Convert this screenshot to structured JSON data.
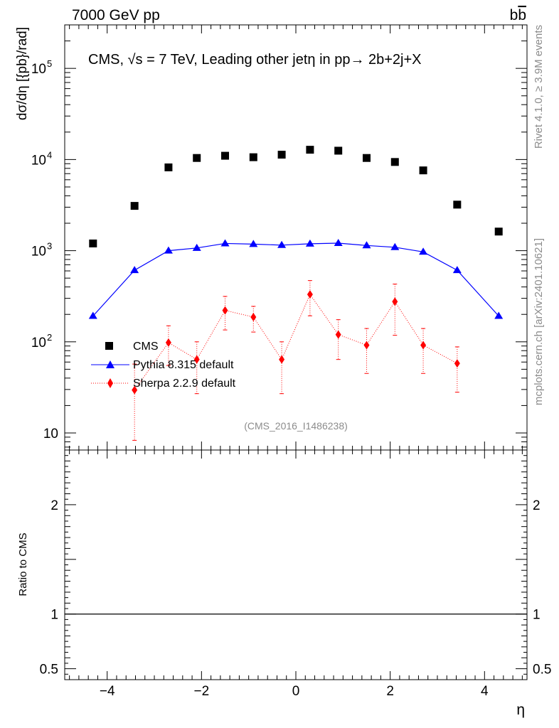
{
  "header": {
    "left": "7000 GeV pp",
    "right": "b",
    "right_bar": "b"
  },
  "side_text": {
    "rivet": "Rivet 4.1.0, ≥ 3.9M events",
    "mcplots": "mcplots.cern.ch [arXiv:2401.10621]"
  },
  "colors": {
    "cms": "#000000",
    "pythia": "#0000ff",
    "sherpa": "#ff0000",
    "ratio_line": "#000000"
  },
  "chart_data": [
    {
      "type": "scatter",
      "panel": "main",
      "title": "CMS, √s = 7 TeV, Leading other jetη in pp→  2b+2j+X",
      "ylabel": "dσ/dη [{pb}/rad]",
      "yscale": "log",
      "xlim": [
        -4.9,
        4.9
      ],
      "ylim": [
        6.5,
        300000
      ],
      "ytick_labels": [
        {
          "value": 10,
          "label": "10"
        },
        {
          "value": 100,
          "base": "10",
          "exp": "2"
        },
        {
          "value": 1000,
          "base": "10",
          "exp": "3"
        },
        {
          "value": 10000,
          "base": "10",
          "exp": "4"
        },
        {
          "value": 100000,
          "base": "10",
          "exp": "5"
        }
      ],
      "watermark": "(CMS_2016_I1486238)",
      "legend_position": "lower-left",
      "series": [
        {
          "name": "CMS",
          "style": "markers-square",
          "x": [
            -4.3,
            -3.42,
            -2.7,
            -2.1,
            -1.5,
            -0.9,
            -0.3,
            0.3,
            0.9,
            1.5,
            2.1,
            2.7,
            3.42,
            4.3
          ],
          "values": [
            1200,
            3100,
            8200,
            10400,
            11000,
            10600,
            11300,
            12800,
            12500,
            10400,
            9400,
            7600,
            3200,
            1620
          ]
        },
        {
          "name": "Pythia 8.315 default",
          "style": "line-triangle",
          "x": [
            -4.3,
            -3.42,
            -2.7,
            -2.1,
            -1.5,
            -0.9,
            -0.3,
            0.3,
            0.9,
            1.5,
            2.1,
            2.7,
            3.42,
            4.3
          ],
          "values": [
            192,
            610,
            1000,
            1070,
            1200,
            1180,
            1150,
            1190,
            1210,
            1140,
            1090,
            970,
            610,
            192
          ]
        },
        {
          "name": "Sherpa 2.2.9 default",
          "style": "dotted-diamond",
          "x": [
            -3.42,
            -2.7,
            -2.1,
            -1.5,
            -0.9,
            -0.3,
            0.3,
            0.9,
            1.5,
            2.1,
            2.7,
            3.42
          ],
          "values": [
            29.6,
            98,
            64,
            221,
            187,
            64,
            331,
            120,
            92,
            276,
            92,
            58
          ],
          "err_low": [
            8.3,
            55,
            27,
            135,
            128,
            27,
            193,
            64,
            45,
            118,
            45,
            28
          ],
          "err_high": [
            57,
            150,
            100,
            315,
            245,
            100,
            470,
            175,
            140,
            430,
            140,
            88
          ]
        }
      ]
    },
    {
      "type": "line",
      "panel": "ratio",
      "ylabel": "Ratio to CMS",
      "xlabel": "η",
      "xlim": [
        -4.9,
        4.9
      ],
      "ylim": [
        0.4,
        2.5
      ],
      "ytick_labels": [
        {
          "value": 0.5,
          "label": "0.5"
        },
        {
          "value": 1,
          "label": "1"
        },
        {
          "value": 2,
          "label": "2"
        }
      ],
      "xtick_labels": [
        {
          "value": -4,
          "label": "−4"
        },
        {
          "value": -2,
          "label": "−2"
        },
        {
          "value": 0,
          "label": "0"
        },
        {
          "value": 2,
          "label": "2"
        },
        {
          "value": 4,
          "label": "4"
        }
      ],
      "series": [
        {
          "name": "reference",
          "x": [
            -4.9,
            4.9
          ],
          "values": [
            1,
            1
          ]
        }
      ]
    }
  ]
}
